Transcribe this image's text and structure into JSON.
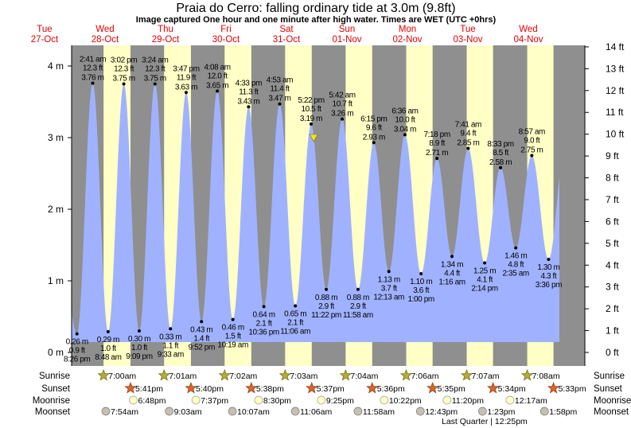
{
  "title": "Praia do Cerro: falling  ordinary tide at 3.0m (9.8ft)",
  "subtitle": "Image captured One hour and one minute after high water. Times are WET (UTC +0hrs)",
  "days": [
    {
      "dow": "Tue",
      "date": "27-Oct"
    },
    {
      "dow": "Wed",
      "date": "28-Oct"
    },
    {
      "dow": "Thu",
      "date": "29-Oct"
    },
    {
      "dow": "Fri",
      "date": "30-Oct"
    },
    {
      "dow": "Sat",
      "date": "31-Oct"
    },
    {
      "dow": "Sun",
      "date": "01-Nov"
    },
    {
      "dow": "Mon",
      "date": "02-Nov"
    },
    {
      "dow": "Tue",
      "date": "03-Nov"
    },
    {
      "dow": "Wed",
      "date": "04-Nov"
    }
  ],
  "colors": {
    "night": "#8f8f8f",
    "day": "#ffffc6",
    "water": "#a0b2ff",
    "dayText": "#e00000"
  },
  "chart_data": {
    "type": "area",
    "title": "Praia do Cerro: falling  ordinary tide at 3.0m (9.8ft)",
    "y_left": {
      "unit": "m",
      "ticks": [
        "0 m",
        "1 m",
        "2 m",
        "3 m",
        "4 m"
      ],
      "range": [
        0,
        4.5
      ]
    },
    "y_right": {
      "unit": "ft",
      "ticks": [
        "0 ft",
        "1 ft",
        "2 ft",
        "3 ft",
        "4 ft",
        "5 ft",
        "6 ft",
        "7 ft",
        "8 ft",
        "9 ft",
        "10 ft",
        "11 ft",
        "12 ft",
        "13 ft",
        "14 ft"
      ]
    },
    "current": {
      "day": "31-Oct",
      "time": "6:23 pm",
      "m": 3.0
    },
    "tides": [
      {
        "type": "low",
        "day": "27-Oct",
        "time": "8:26 pm",
        "m": "0.26 m",
        "ft": "0.9 ft"
      },
      {
        "type": "high",
        "day": "28-Oct",
        "time": "2:41 am",
        "m": "3.76 m",
        "ft": "12.3 ft"
      },
      {
        "type": "low",
        "day": "28-Oct",
        "time": "8:48 am",
        "m": "0.29 m",
        "ft": "1.0 ft"
      },
      {
        "type": "high",
        "day": "28-Oct",
        "time": "3:02 pm",
        "m": "3.75 m",
        "ft": "12.3 ft"
      },
      {
        "type": "low",
        "day": "28-Oct",
        "time": "9:09 pm",
        "m": "0.30 m",
        "ft": "1.0 ft"
      },
      {
        "type": "high",
        "day": "29-Oct",
        "time": "3:24 am",
        "m": "3.75 m",
        "ft": "12.3 ft"
      },
      {
        "type": "low",
        "day": "29-Oct",
        "time": "9:33 am",
        "m": "0.33 m",
        "ft": "1.1 ft"
      },
      {
        "type": "high",
        "day": "29-Oct",
        "time": "3:47 pm",
        "m": "3.63 m",
        "ft": "11.9 ft"
      },
      {
        "type": "low",
        "day": "29-Oct",
        "time": "9:52 pm",
        "m": "0.43 m",
        "ft": "1.4 ft"
      },
      {
        "type": "high",
        "day": "30-Oct",
        "time": "4:08 am",
        "m": "3.65 m",
        "ft": "12.0 ft"
      },
      {
        "type": "low",
        "day": "30-Oct",
        "time": "10:19 am",
        "m": "0.46 m",
        "ft": "1.5 ft"
      },
      {
        "type": "high",
        "day": "30-Oct",
        "time": "4:33 pm",
        "m": "3.43 m",
        "ft": "11.3 ft"
      },
      {
        "type": "low",
        "day": "30-Oct",
        "time": "10:36 pm",
        "m": "0.64 m",
        "ft": "2.1 ft"
      },
      {
        "type": "high",
        "day": "31-Oct",
        "time": "4:53 am",
        "m": "3.47 m",
        "ft": "11.4 ft"
      },
      {
        "type": "low",
        "day": "31-Oct",
        "time": "11:06 am",
        "m": "0.65 m",
        "ft": "2.1 ft"
      },
      {
        "type": "high",
        "day": "31-Oct",
        "time": "5:22 pm",
        "m": "3.19 m",
        "ft": "10.5 ft"
      },
      {
        "type": "low",
        "day": "31-Oct",
        "time": "11:22 pm",
        "m": "0.88 m",
        "ft": "2.9 ft"
      },
      {
        "type": "high",
        "day": "01-Nov",
        "time": "5:42 am",
        "m": "3.26 m",
        "ft": "10.7 ft"
      },
      {
        "type": "low",
        "day": "01-Nov",
        "time": "11:58 am",
        "m": "0.88 m",
        "ft": "2.9 ft"
      },
      {
        "type": "high",
        "day": "01-Nov",
        "time": "6:15 pm",
        "m": "2.93 m",
        "ft": "9.6 ft"
      },
      {
        "type": "low",
        "day": "02-Nov",
        "time": "12:13 am",
        "m": "1.13 m",
        "ft": "3.7 ft"
      },
      {
        "type": "high",
        "day": "02-Nov",
        "time": "6:36 am",
        "m": "3.04 m",
        "ft": "10.0 ft"
      },
      {
        "type": "low",
        "day": "02-Nov",
        "time": "1:00 pm",
        "m": "1.10 m",
        "ft": "3.6 ft"
      },
      {
        "type": "high",
        "day": "02-Nov",
        "time": "7:18 pm",
        "m": "2.71 m",
        "ft": "8.9 ft"
      },
      {
        "type": "low",
        "day": "03-Nov",
        "time": "1:16 am",
        "m": "1.34 m",
        "ft": "4.4 ft"
      },
      {
        "type": "high",
        "day": "03-Nov",
        "time": "7:41 am",
        "m": "2.85 m",
        "ft": "9.4 ft"
      },
      {
        "type": "low",
        "day": "03-Nov",
        "time": "2:14 pm",
        "m": "1.25 m",
        "ft": "4.1 ft"
      },
      {
        "type": "high",
        "day": "03-Nov",
        "time": "8:33 pm",
        "m": "2.58 m",
        "ft": "8.5 ft"
      },
      {
        "type": "low",
        "day": "04-Nov",
        "time": "2:35 am",
        "m": "1.46 m",
        "ft": "4.8 ft"
      },
      {
        "type": "high",
        "day": "04-Nov",
        "time": "8:57 am",
        "m": "2.75 m",
        "ft": "9.0 ft"
      },
      {
        "type": "low",
        "day": "04-Nov",
        "time": "3:36 pm",
        "m": "1.30 m",
        "ft": "4.3 ft"
      }
    ]
  },
  "rows": {
    "sunrise": "Sunrise",
    "sunset": "Sunset",
    "moonrise": "Moonrise",
    "moonset": "Moonset"
  },
  "sunrise": [
    {
      "day": "28-Oct",
      "time": "7:00am"
    },
    {
      "day": "29-Oct",
      "time": "7:01am"
    },
    {
      "day": "30-Oct",
      "time": "7:02am"
    },
    {
      "day": "31-Oct",
      "time": "7:03am"
    },
    {
      "day": "01-Nov",
      "time": "7:04am"
    },
    {
      "day": "02-Nov",
      "time": "7:06am"
    },
    {
      "day": "03-Nov",
      "time": "7:07am"
    },
    {
      "day": "04-Nov",
      "time": "7:08am"
    }
  ],
  "sunset": [
    {
      "day": "28-Oct",
      "time": "5:41pm"
    },
    {
      "day": "29-Oct",
      "time": "5:40pm"
    },
    {
      "day": "30-Oct",
      "time": "5:38pm"
    },
    {
      "day": "31-Oct",
      "time": "5:37pm"
    },
    {
      "day": "01-Nov",
      "time": "5:36pm"
    },
    {
      "day": "02-Nov",
      "time": "5:35pm"
    },
    {
      "day": "03-Nov",
      "time": "5:34pm"
    },
    {
      "day": "04-Nov",
      "time": "5:33pm"
    }
  ],
  "moonrise": [
    {
      "day": "28-Oct",
      "time": "6:48pm"
    },
    {
      "day": "29-Oct",
      "time": "7:37pm"
    },
    {
      "day": "30-Oct",
      "time": "8:30pm"
    },
    {
      "day": "31-Oct",
      "time": "9:25pm"
    },
    {
      "day": "01-Nov",
      "time": "10:22pm"
    },
    {
      "day": "02-Nov",
      "time": "11:20pm"
    },
    {
      "day": "04-Nov",
      "time": "12:17am"
    }
  ],
  "moonset": [
    {
      "day": "28-Oct",
      "time": "7:54am"
    },
    {
      "day": "29-Oct",
      "time": "9:03am"
    },
    {
      "day": "30-Oct",
      "time": "10:07am"
    },
    {
      "day": "31-Oct",
      "time": "11:06am"
    },
    {
      "day": "01-Nov",
      "time": "11:58am"
    },
    {
      "day": "02-Nov",
      "time": "12:43pm"
    },
    {
      "day": "03-Nov",
      "time": "1:23pm"
    },
    {
      "day": "04-Nov",
      "time": "1:58pm"
    }
  ],
  "moon_phase": "Last Quarter | 12:25pm"
}
